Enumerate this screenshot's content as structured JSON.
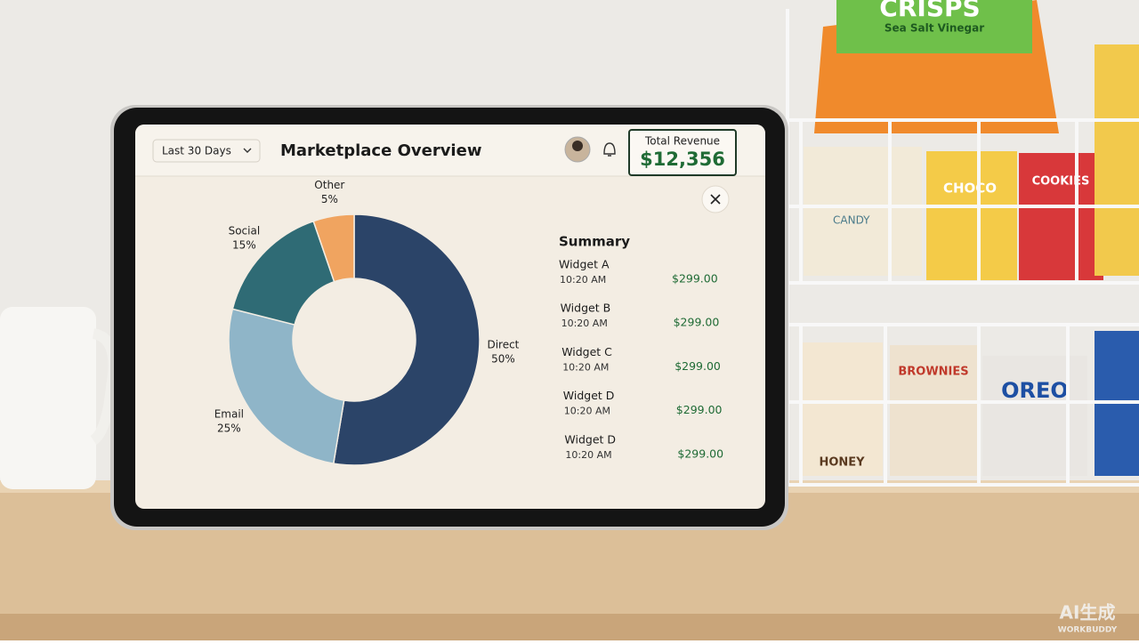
{
  "header": {
    "filter": "Last 30 Days",
    "title": "Marketplace Overview",
    "revenue_label": "Total Revenue",
    "revenue": "$12,356"
  },
  "chart_data": {
    "type": "donut",
    "categories": [
      "Direct",
      "Email",
      "Social",
      "Other"
    ],
    "values": [
      50,
      25,
      15,
      5
    ],
    "value_labels": [
      "50%",
      "25%",
      "15%",
      "5%"
    ],
    "colors": [
      "#2b4468",
      "#8fb5c8",
      "#2f6b75",
      "#f0a460"
    ]
  },
  "summary": {
    "title": "Summary",
    "items": [
      {
        "name": "Widget A",
        "time": "10:20 AM",
        "amount": "$299.00"
      },
      {
        "name": "Widget B",
        "time": "10:20 AM",
        "amount": "$299.00"
      },
      {
        "name": "Widget C",
        "time": "10:20 AM",
        "amount": "$299.00"
      },
      {
        "name": "Widget D",
        "time": "10:20 AM",
        "amount": "$299.00"
      },
      {
        "name": "Widget D",
        "time": "10:20 AM",
        "amount": "$299.00"
      }
    ]
  },
  "scene": {
    "labels": [
      "CRISPS",
      "Sea Salt Vinegar",
      "CANDY",
      "CHOCO",
      "COOKIES",
      "BROWNIES",
      "OREO",
      "HONEY"
    ],
    "watermark": [
      "AI生成",
      "WORKBUDDY"
    ]
  }
}
